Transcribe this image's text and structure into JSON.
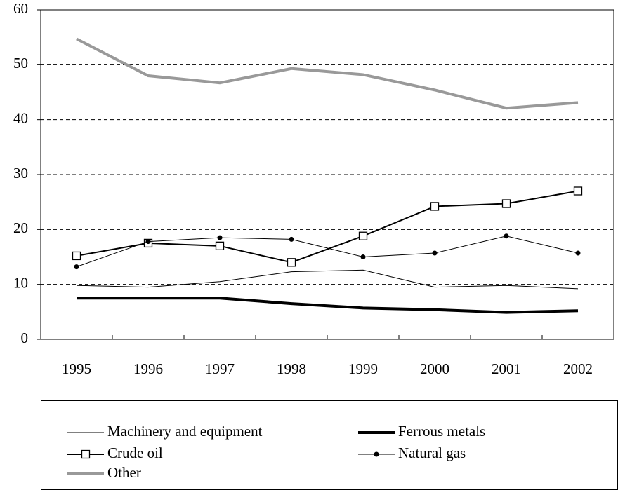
{
  "chart_data": {
    "type": "line",
    "categories": [
      "1995",
      "1996",
      "1997",
      "1998",
      "1999",
      "2000",
      "2001",
      "2002"
    ],
    "series": [
      {
        "name": "Machinery and equipment",
        "color": "#000000",
        "line_width": 1,
        "values": [
          9.8,
          9.5,
          10.5,
          12.3,
          12.6,
          9.5,
          9.8,
          9.2
        ]
      },
      {
        "name": "Ferrous metals",
        "color": "#000000",
        "line_width": 4,
        "values": [
          7.5,
          7.5,
          7.5,
          6.5,
          5.7,
          5.4,
          4.9,
          5.2
        ]
      },
      {
        "name": "Crude oil",
        "color": "#000000",
        "line_width": 2,
        "marker": "square",
        "values": [
          15.2,
          17.5,
          17.0,
          14.0,
          18.8,
          24.2,
          24.7,
          27.0
        ]
      },
      {
        "name": "Natural gas",
        "color": "#000000",
        "line_width": 1,
        "marker": "circle",
        "values": [
          13.2,
          17.8,
          18.5,
          18.2,
          15.0,
          15.7,
          18.8,
          15.7
        ]
      },
      {
        "name": "Other",
        "color": "#999999",
        "line_width": 4,
        "values": [
          54.7,
          48.0,
          46.7,
          49.3,
          48.2,
          45.4,
          42.1,
          43.1
        ]
      }
    ],
    "ylim": [
      0,
      60
    ],
    "yticks": [
      0,
      10,
      20,
      30,
      40,
      50,
      60
    ],
    "grid": true,
    "legend": "bottom"
  }
}
